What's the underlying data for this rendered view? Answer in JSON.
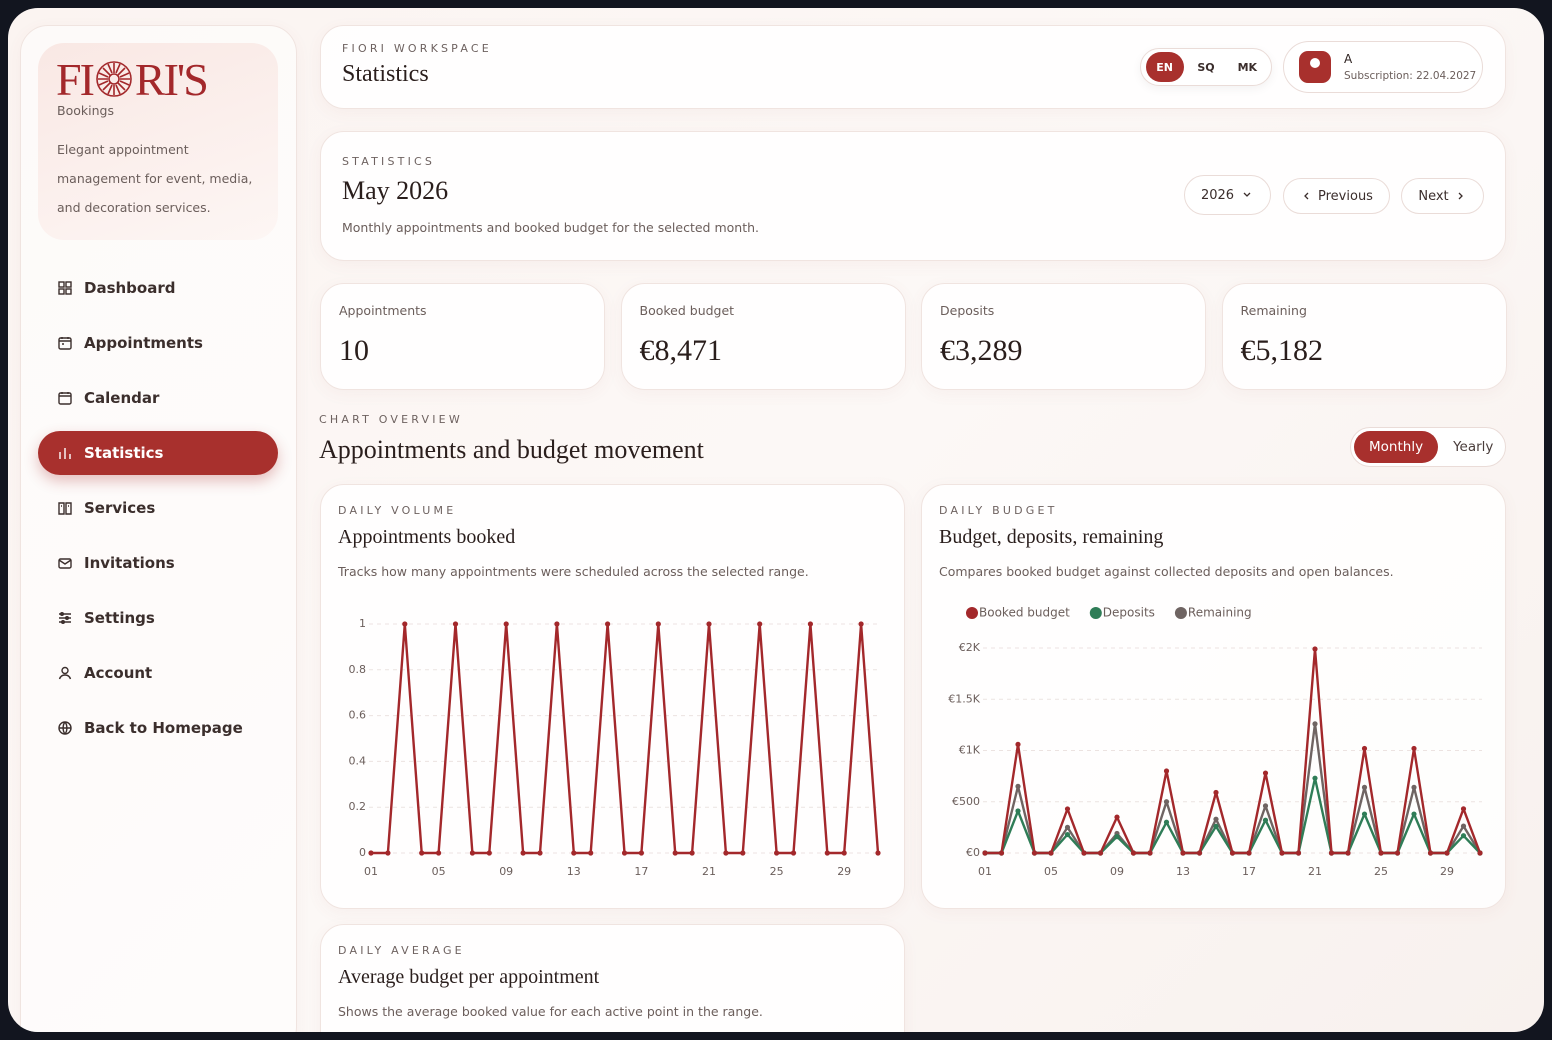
{
  "sidebar": {
    "logo": [
      "FI",
      "RI'S"
    ],
    "brand_subtitle": "Bookings",
    "description": "Elegant appointment management for event, media, and decoration services.",
    "nav": [
      {
        "label": "Dashboard",
        "active": false
      },
      {
        "label": "Appointments",
        "active": false
      },
      {
        "label": "Calendar",
        "active": false
      },
      {
        "label": "Statistics",
        "active": true
      },
      {
        "label": "Services",
        "active": false
      },
      {
        "label": "Invitations",
        "active": false
      },
      {
        "label": "Settings",
        "active": false
      },
      {
        "label": "Account",
        "active": false
      },
      {
        "label": "Back to Homepage",
        "active": false
      }
    ]
  },
  "header": {
    "eyebrow": "FIORI WORKSPACE",
    "title": "Statistics",
    "languages": [
      {
        "label": "EN",
        "active": true
      },
      {
        "label": "SQ",
        "active": false
      },
      {
        "label": "MK",
        "active": false
      }
    ],
    "user": {
      "initial": "A",
      "subscription": "Subscription: 22.04.2027"
    }
  },
  "period": {
    "eyebrow": "STATISTICS",
    "title": "May 2026",
    "description": "Monthly appointments and booked budget for the selected month.",
    "year": "2026",
    "previous": "Previous",
    "next": "Next"
  },
  "kpis": [
    {
      "label": "Appointments",
      "value": "10"
    },
    {
      "label": "Booked budget",
      "value": "€8,471"
    },
    {
      "label": "Deposits",
      "value": "€3,289"
    },
    {
      "label": "Remaining",
      "value": "€5,182"
    }
  ],
  "overview": {
    "eyebrow": "CHART OVERVIEW",
    "title": "Appointments and budget movement",
    "toggle": [
      {
        "label": "Monthly",
        "active": true
      },
      {
        "label": "Yearly",
        "active": false
      }
    ]
  },
  "chart_data": [
    {
      "type": "line",
      "eyebrow": "DAILY VOLUME",
      "title": "Appointments booked",
      "subtitle": "Tracks how many appointments were scheduled across the selected range.",
      "categories": [
        "01",
        null,
        null,
        null,
        "05",
        null,
        null,
        null,
        "09",
        null,
        null,
        null,
        "13",
        null,
        null,
        null,
        "17",
        null,
        null,
        null,
        "21",
        null,
        null,
        null,
        "25",
        null,
        null,
        null,
        "29",
        null,
        null
      ],
      "values": [
        0,
        0,
        1,
        0,
        0,
        1,
        0,
        0,
        1,
        0,
        0,
        1,
        0,
        0,
        1,
        0,
        0,
        1,
        0,
        0,
        1,
        0,
        0,
        1,
        0,
        0,
        1,
        0,
        0,
        1,
        0
      ],
      "color": "#a3282b",
      "ylim": [
        0,
        1
      ],
      "yticks": [
        0,
        0.2,
        0.4,
        0.6,
        0.8,
        1
      ],
      "grid": true
    },
    {
      "type": "line",
      "eyebrow": "DAILY BUDGET",
      "title": "Budget, deposits, remaining",
      "subtitle": "Compares booked budget against collected deposits and open balances.",
      "categories": [
        "01",
        null,
        null,
        null,
        "05",
        null,
        null,
        null,
        "09",
        null,
        null,
        null,
        "13",
        null,
        null,
        null,
        "17",
        null,
        null,
        null,
        "21",
        null,
        null,
        null,
        "25",
        null,
        null,
        null,
        "29",
        null,
        null
      ],
      "series": [
        {
          "name": "Booked budget",
          "color": "#a3282b",
          "values": [
            0,
            0,
            1060,
            0,
            0,
            430,
            0,
            0,
            350,
            0,
            0,
            800,
            0,
            0,
            590,
            0,
            0,
            780,
            0,
            0,
            1990,
            0,
            0,
            1020,
            0,
            0,
            1020,
            0,
            0,
            431,
            0
          ]
        },
        {
          "name": "Deposits",
          "color": "#2f7d57",
          "values": [
            0,
            0,
            410,
            0,
            0,
            180,
            0,
            0,
            160,
            0,
            0,
            300,
            0,
            0,
            260,
            0,
            0,
            320,
            0,
            0,
            730,
            0,
            0,
            380,
            0,
            0,
            380,
            0,
            0,
            169,
            0
          ]
        },
        {
          "name": "Remaining",
          "color": "#6f6462",
          "values": [
            0,
            0,
            650,
            0,
            0,
            250,
            0,
            0,
            190,
            0,
            0,
            500,
            0,
            0,
            330,
            0,
            0,
            460,
            0,
            0,
            1260,
            0,
            0,
            640,
            0,
            0,
            640,
            0,
            0,
            262,
            0
          ]
        }
      ],
      "ylim": [
        0,
        2000
      ],
      "yticks": [
        {
          "value": 0,
          "label": "€0"
        },
        {
          "value": 500,
          "label": "€500"
        },
        {
          "value": 1000,
          "label": "€1K"
        },
        {
          "value": 1500,
          "label": "€1.5K"
        },
        {
          "value": 2000,
          "label": "€2K"
        }
      ],
      "grid": true,
      "legend": "top-left"
    }
  ],
  "average_card": {
    "eyebrow": "DAILY AVERAGE",
    "title": "Average budget per appointment",
    "subtitle": "Shows the average booked value for each active point in the range."
  }
}
